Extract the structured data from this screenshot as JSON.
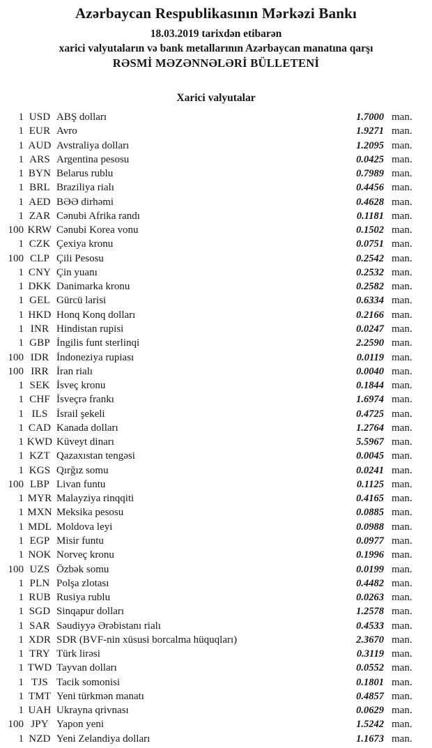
{
  "header": {
    "bank_title": "Azərbaycan Respublikasının Mərkəzi Bankı",
    "date_line": "18.03.2019 tarixdən etibarən",
    "subtitle": "xarici valyutaların və bank metallarının Azərbaycan manatına qarşı",
    "bulletin_title": "RƏSMİ MƏZƏNNƏLƏRİ BÜLLETENİ"
  },
  "section_title": "Xarici valyutalar",
  "unit_label": "man.",
  "rates": [
    {
      "qty": "1",
      "code": "USD",
      "name": "ABŞ dolları",
      "rate": "1.7000"
    },
    {
      "qty": "1",
      "code": "EUR",
      "name": "Avro",
      "rate": "1.9271"
    },
    {
      "qty": "1",
      "code": "AUD",
      "name": "Avstraliya dolları",
      "rate": "1.2095"
    },
    {
      "qty": "1",
      "code": "ARS",
      "name": "Argentina pesosu",
      "rate": "0.0425"
    },
    {
      "qty": "1",
      "code": "BYN",
      "name": "Belarus rublu",
      "rate": "0.7989"
    },
    {
      "qty": "1",
      "code": "BRL",
      "name": "Braziliya rialı",
      "rate": "0.4456"
    },
    {
      "qty": "1",
      "code": "AED",
      "name": "BƏƏ dirhəmi",
      "rate": "0.4628"
    },
    {
      "qty": "1",
      "code": "ZAR",
      "name": "Cənubi Afrika randı",
      "rate": "0.1181"
    },
    {
      "qty": "100",
      "code": "KRW",
      "name": "Cənubi Korea vonu",
      "rate": "0.1502"
    },
    {
      "qty": "1",
      "code": "CZK",
      "name": "Çexiya kronu",
      "rate": "0.0751"
    },
    {
      "qty": "100",
      "code": "CLP",
      "name": "Çili Pesosu",
      "rate": "0.2542"
    },
    {
      "qty": "1",
      "code": "CNY",
      "name": "Çin yuanı",
      "rate": "0.2532"
    },
    {
      "qty": "1",
      "code": "DKK",
      "name": "Danimarka kronu",
      "rate": "0.2582"
    },
    {
      "qty": "1",
      "code": "GEL",
      "name": "Gürcü larisi",
      "rate": "0.6334"
    },
    {
      "qty": "1",
      "code": "HKD",
      "name": "Honq Konq dolları",
      "rate": "0.2166"
    },
    {
      "qty": "1",
      "code": "INR",
      "name": "Hindistan rupisi",
      "rate": "0.0247"
    },
    {
      "qty": "1",
      "code": "GBP",
      "name": "İngilis funt sterlinqi",
      "rate": "2.2590"
    },
    {
      "qty": "100",
      "code": "IDR",
      "name": "İndoneziya rupiası",
      "rate": "0.0119"
    },
    {
      "qty": "100",
      "code": "IRR",
      "name": "İran rialı",
      "rate": "0.0040"
    },
    {
      "qty": "1",
      "code": "SEK",
      "name": "İsveç kronu",
      "rate": "0.1844"
    },
    {
      "qty": "1",
      "code": "CHF",
      "name": "İsveçrə frankı",
      "rate": "1.6974"
    },
    {
      "qty": "1",
      "code": "ILS",
      "name": "İsrail şekeli",
      "rate": "0.4725"
    },
    {
      "qty": "1",
      "code": "CAD",
      "name": "Kanada dolları",
      "rate": "1.2764"
    },
    {
      "qty": "1",
      "code": "KWD",
      "name": "Küveyt dinarı",
      "rate": "5.5967"
    },
    {
      "qty": "1",
      "code": "KZT",
      "name": "Qazaxıstan tengəsi",
      "rate": "0.0045"
    },
    {
      "qty": "1",
      "code": "KGS",
      "name": "Qırğız somu",
      "rate": "0.0241"
    },
    {
      "qty": "100",
      "code": "LBP",
      "name": "Livan funtu",
      "rate": "0.1125"
    },
    {
      "qty": "1",
      "code": "MYR",
      "name": "Malayziya rinqqiti",
      "rate": "0.4165"
    },
    {
      "qty": "1",
      "code": "MXN",
      "name": "Meksika pesosu",
      "rate": "0.0885"
    },
    {
      "qty": "1",
      "code": "MDL",
      "name": "Moldova leyi",
      "rate": "0.0988"
    },
    {
      "qty": "1",
      "code": "EGP",
      "name": "Misir funtu",
      "rate": "0.0977"
    },
    {
      "qty": "1",
      "code": "NOK",
      "name": "Norveç kronu",
      "rate": "0.1996"
    },
    {
      "qty": "100",
      "code": "UZS",
      "name": "Özbək somu",
      "rate": "0.0199"
    },
    {
      "qty": "1",
      "code": "PLN",
      "name": "Polşa zlotası",
      "rate": "0.4482"
    },
    {
      "qty": "1",
      "code": "RUB",
      "name": "Rusiya rublu",
      "rate": "0.0263"
    },
    {
      "qty": "1",
      "code": "SGD",
      "name": "Sinqapur dolları",
      "rate": "1.2578"
    },
    {
      "qty": "1",
      "code": "SAR",
      "name": "Səudiyyə Ərəbistanı rialı",
      "rate": "0.4533"
    },
    {
      "qty": "1",
      "code": "XDR",
      "name": "SDR (BVF-nin xüsusi borcalma hüquqları)",
      "rate": "2.3670"
    },
    {
      "qty": "1",
      "code": "TRY",
      "name": "Türk lirəsi",
      "rate": "0.3119"
    },
    {
      "qty": "1",
      "code": "TWD",
      "name": "Tayvan dolları",
      "rate": "0.0552"
    },
    {
      "qty": "1",
      "code": "TJS",
      "name": "Tacik somonisi",
      "rate": "0.1801"
    },
    {
      "qty": "1",
      "code": "TMT",
      "name": "Yeni türkmən manatı",
      "rate": "0.4857"
    },
    {
      "qty": "1",
      "code": "UAH",
      "name": "Ukrayna qrivnası",
      "rate": "0.0629"
    },
    {
      "qty": "100",
      "code": "JPY",
      "name": "Yapon yeni",
      "rate": "1.5242"
    },
    {
      "qty": "1",
      "code": "NZD",
      "name": "Yeni Zelandiya dolları",
      "rate": "1.1673"
    }
  ]
}
